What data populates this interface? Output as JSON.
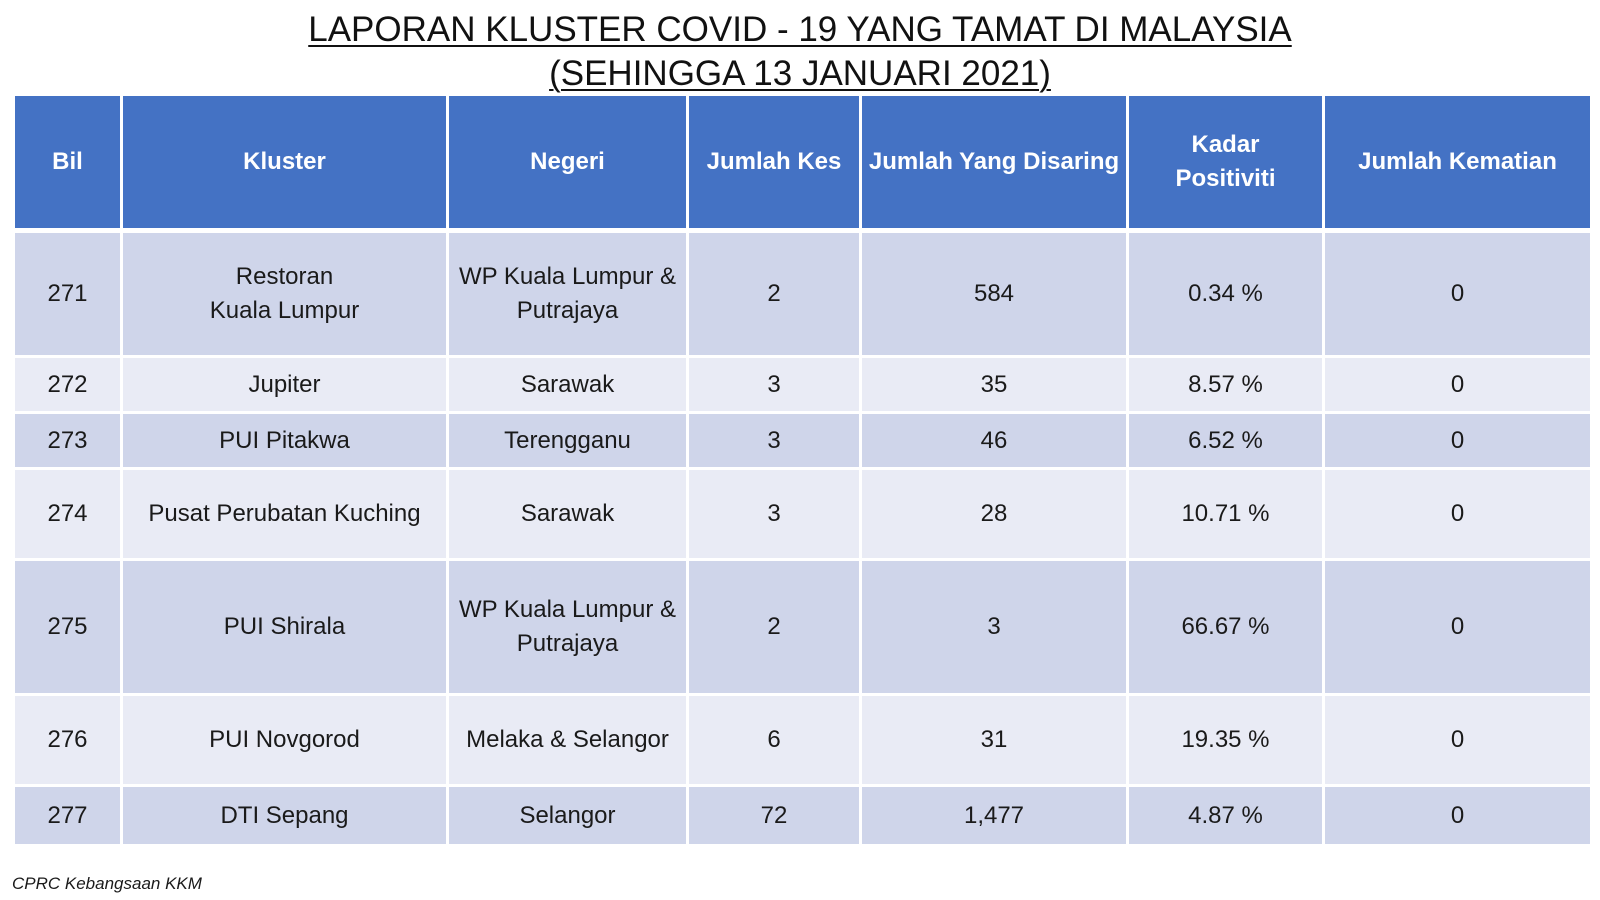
{
  "title": {
    "line1": "LAPORAN KLUSTER COVID - 19 YANG TAMAT DI MALAYSIA",
    "line2": "(SEHINGGA 13 JANUARI 2021)"
  },
  "table": {
    "headers": {
      "bil": "Bil",
      "kluster": "Kluster",
      "negeri": "Negeri",
      "jumlah_kes": "Jumlah Kes",
      "jumlah_disaring": "Jumlah Yang Disaring",
      "kadar_positiviti_1": "Kadar",
      "kadar_positiviti_2": "Positiviti",
      "jumlah_kematian": "Jumlah Kematian"
    },
    "rows": [
      {
        "bil": "271",
        "kluster_1": "Restoran",
        "kluster_2": "Kuala Lumpur",
        "negeri_1": "WP Kuala Lumpur &",
        "negeri_2": "Putrajaya",
        "kes": "2",
        "disaring": "584",
        "positiviti": "0.34 %",
        "kematian": "0"
      },
      {
        "bil": "272",
        "kluster_1": "Jupiter",
        "negeri_1": "Sarawak",
        "kes": "3",
        "disaring": "35",
        "positiviti": "8.57 %",
        "kematian": "0"
      },
      {
        "bil": "273",
        "kluster_1": "PUI Pitakwa",
        "negeri_1": "Terengganu",
        "kes": "3",
        "disaring": "46",
        "positiviti": "6.52 %",
        "kematian": "0"
      },
      {
        "bil": "274",
        "kluster_1": "Pusat Perubatan Kuching",
        "negeri_1": "Sarawak",
        "kes": "3",
        "disaring": "28",
        "positiviti": "10.71 %",
        "kematian": "0"
      },
      {
        "bil": "275",
        "kluster_1": "PUI Shirala",
        "negeri_1": "WP Kuala Lumpur &",
        "negeri_2": "Putrajaya",
        "kes": "2",
        "disaring": "3",
        "positiviti": "66.67 %",
        "kematian": "0"
      },
      {
        "bil": "276",
        "kluster_1": "PUI Novgorod",
        "negeri_1": "Melaka & Selangor",
        "kes": "6",
        "disaring": "31",
        "positiviti": "19.35 %",
        "kematian": "0"
      },
      {
        "bil": "277",
        "kluster_1": "DTI Sepang",
        "negeri_1": "Selangor",
        "kes": "72",
        "disaring": "1,477",
        "positiviti": "4.87 %",
        "kematian": "0"
      }
    ]
  },
  "footer": {
    "source": "CPRC Kebangsaan KKM"
  },
  "colors": {
    "header_bg": "#4472c4",
    "row_odd_bg": "#cfd5ea",
    "row_even_bg": "#e9ebf5"
  }
}
